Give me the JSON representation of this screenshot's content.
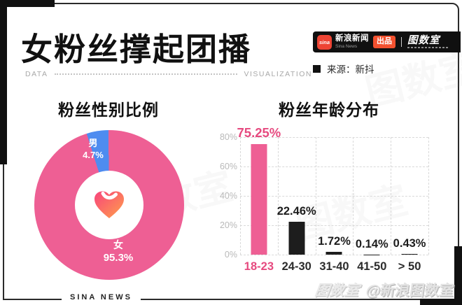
{
  "page": {
    "title": "女粉丝撑起团播"
  },
  "header": {
    "brand": {
      "sina_icon_text": "sina",
      "name_cn": "新浪新闻",
      "name_en": "Sina News",
      "badge": "出品",
      "studio": "图数室"
    },
    "source_label": "来源：新抖"
  },
  "divider": {
    "left": "DATA",
    "right": "VISUALIZATION"
  },
  "footer": {
    "brand": "SINA NEWS",
    "watermark": "@新浪图数室",
    "watermark_faint": "图数室"
  },
  "colors": {
    "pink": "#ee5f94",
    "pink_label": "#e64a7f",
    "blue": "#4e8cf0",
    "black_bar": "#1d1d1d",
    "heart_gradient_start": "#f8447c",
    "heart_gradient_end": "#ffa04a"
  },
  "chart_data": [
    {
      "type": "pie",
      "title": "粉丝性别比例",
      "slices": [
        {
          "label": "女",
          "pct_label": "95.3%",
          "value": 95.3,
          "color": "#ee5f94"
        },
        {
          "label": "男",
          "pct_label": "4.7%",
          "value": 4.7,
          "color": "#4e8cf0"
        }
      ],
      "center_icon": "gradient-heart",
      "donut": true
    },
    {
      "type": "bar",
      "title": "粉丝年龄分布",
      "categories": [
        "18-23",
        "24-30",
        "31-40",
        "41-50",
        "> 50"
      ],
      "values": [
        75.25,
        22.46,
        1.72,
        0.14,
        0.43
      ],
      "value_labels": [
        "75.25%",
        "22.46%",
        "1.72%",
        "0.14%",
        "0.43%"
      ],
      "bar_colors": [
        "#ee5f94",
        "#1d1d1d",
        "#1d1d1d",
        "#1d1d1d",
        "#1d1d1d"
      ],
      "label_colors": [
        "#e64a7f",
        "#1d1d1d",
        "#1d1d1d",
        "#1d1d1d",
        "#1d1d1d"
      ],
      "tick_colors": [
        "#e64a7f",
        "#2b2b2b",
        "#2b2b2b",
        "#2b2b2b",
        "#2b2b2b"
      ],
      "yticks": [
        "80%",
        "60%",
        "40%",
        "20%",
        "0%"
      ],
      "ylim": [
        0,
        80
      ],
      "grid": "dashed"
    }
  ]
}
